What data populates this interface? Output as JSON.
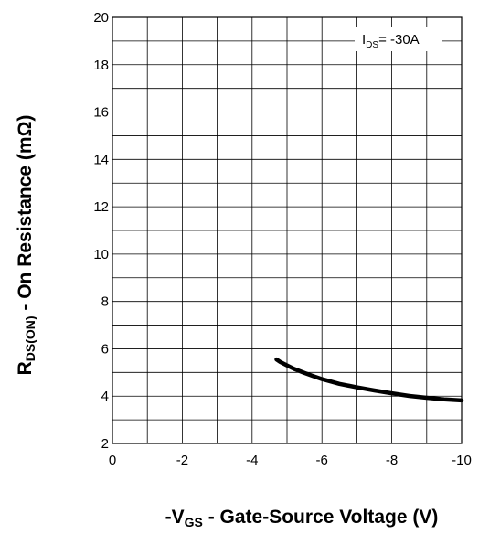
{
  "chart_data": {
    "type": "line",
    "title": "",
    "xlabel": {
      "prefix": "-V",
      "sub": "GS",
      "rest": " - Gate-Source Voltage (V)"
    },
    "ylabel": {
      "main": "R",
      "sub": "DS(ON)",
      "rest": " - On Resistance (mΩ)"
    },
    "xlim": [
      0,
      -10
    ],
    "ylim": [
      2,
      20
    ],
    "xticks": [
      0,
      -2,
      -4,
      -6,
      -8,
      -10
    ],
    "xtick_labels": [
      "0",
      "-2",
      "-4",
      "-6",
      "-8",
      "-10"
    ],
    "yticks": [
      2,
      4,
      6,
      8,
      10,
      12,
      14,
      16,
      18,
      20
    ],
    "ytick_labels": [
      "2",
      "4",
      "6",
      "8",
      "10",
      "12",
      "14",
      "16",
      "18",
      "20"
    ],
    "grid": true,
    "annotation": {
      "prefix": "I",
      "sub": "DS",
      "rest": "= -30A"
    },
    "series": [
      {
        "x": [
          -4.7,
          -4.8,
          -5.0,
          -5.2,
          -5.5,
          -5.8,
          -6.0,
          -6.5,
          -7.0,
          -7.5,
          -8.0,
          -8.5,
          -9.0,
          -9.5,
          -10.0
        ],
        "y": [
          5.55,
          5.45,
          5.3,
          5.15,
          4.98,
          4.82,
          4.72,
          4.52,
          4.37,
          4.24,
          4.12,
          4.01,
          3.93,
          3.86,
          3.82
        ]
      }
    ],
    "colors": {
      "line": "#000000",
      "grid": "#000000",
      "background": "#ffffff"
    }
  }
}
